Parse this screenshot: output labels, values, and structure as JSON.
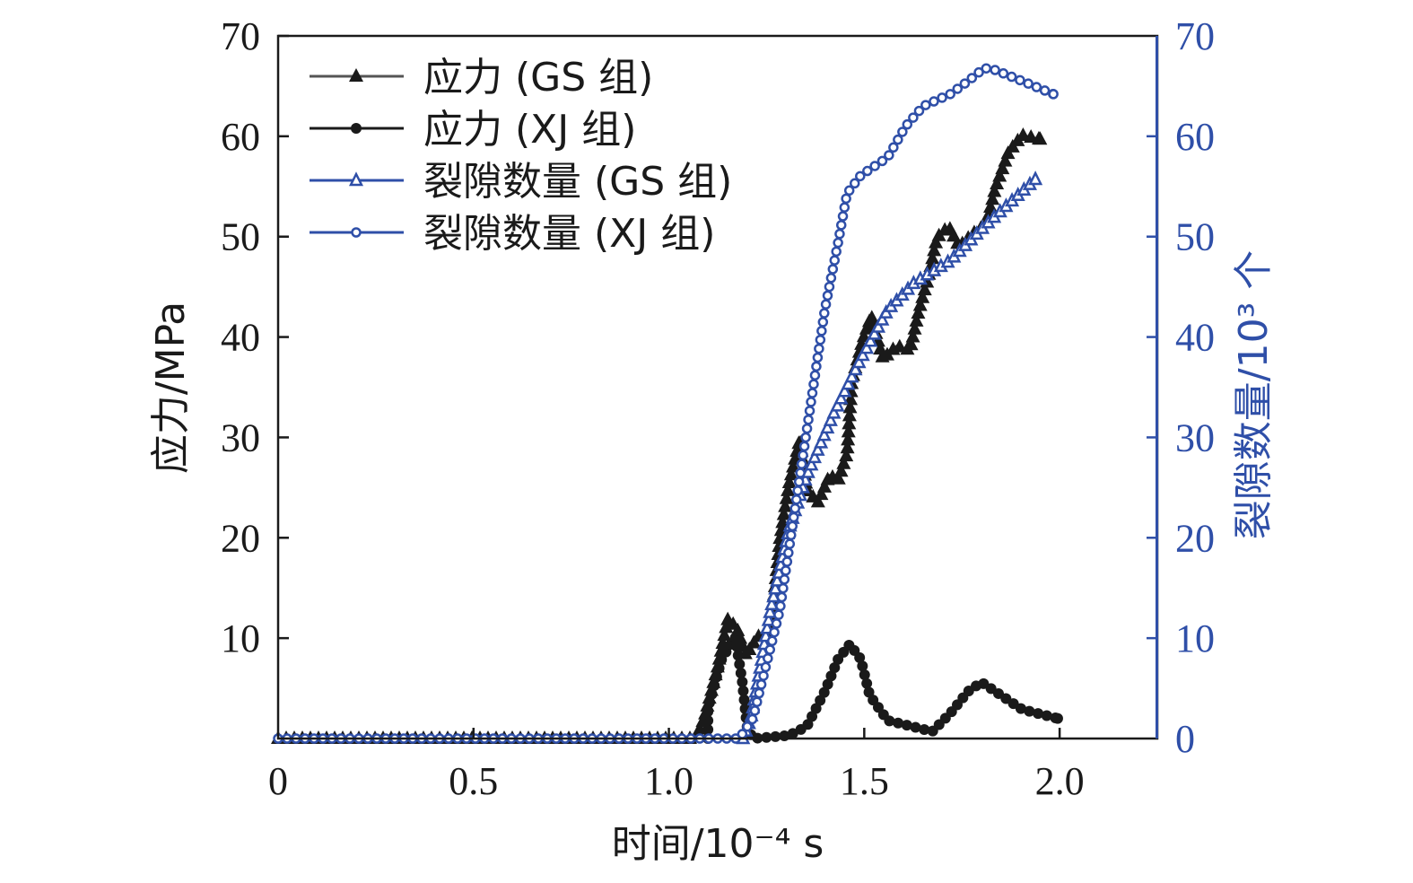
{
  "chart_data": {
    "type": "line",
    "xlabel": "时间/10⁻⁴ s",
    "ylabel": "应力/MPa",
    "y2label": "裂隙数量/10³ 个",
    "xlim": [
      0,
      2.25
    ],
    "ylim": [
      0,
      70
    ],
    "y2lim": [
      0,
      70
    ],
    "x_ticks": [
      "0",
      "0.5",
      "1.0",
      "1.5",
      "2.0"
    ],
    "x_tick_values": [
      0,
      0.5,
      1.0,
      1.5,
      2.0
    ],
    "y_ticks": [
      "10",
      "20",
      "30",
      "40",
      "50",
      "60",
      "70"
    ],
    "y_tick_values": [
      10,
      20,
      30,
      40,
      50,
      60,
      70
    ],
    "y2_ticks": [
      "0",
      "10",
      "20",
      "30",
      "40",
      "50",
      "60",
      "70"
    ],
    "y2_tick_values": [
      0,
      10,
      20,
      30,
      40,
      50,
      60,
      70
    ],
    "legend_position": "top-left",
    "grid": false,
    "colors": {
      "black": "#1a1a1a",
      "gs_line": "#555555",
      "blue": "#2f4fa8"
    },
    "series": [
      {
        "name": "应力 (GS 组)",
        "axis": "left",
        "marker": "triangle-filled",
        "color": "#1a1a1a",
        "line": "#555555",
        "points": [
          [
            0,
            0
          ],
          [
            1.069,
            0
          ],
          [
            1.09,
            2
          ],
          [
            1.124,
            7
          ],
          [
            1.151,
            11.9
          ],
          [
            1.174,
            11
          ],
          [
            1.197,
            8.3
          ],
          [
            1.227,
            10.1
          ],
          [
            1.261,
            11
          ],
          [
            1.284,
            19.9
          ],
          [
            1.307,
            25.3
          ],
          [
            1.335,
            29.8
          ],
          [
            1.353,
            24.8
          ],
          [
            1.381,
            23.5
          ],
          [
            1.411,
            26.2
          ],
          [
            1.433,
            25.7
          ],
          [
            1.456,
            28.4
          ],
          [
            1.468,
            35.6
          ],
          [
            1.495,
            39.6
          ],
          [
            1.518,
            42.1
          ],
          [
            1.548,
            37.8
          ],
          [
            1.583,
            39.1
          ],
          [
            1.617,
            38.7
          ],
          [
            1.64,
            42.7
          ],
          [
            1.663,
            45.8
          ],
          [
            1.686,
            49.9
          ],
          [
            1.716,
            51
          ],
          [
            1.743,
            49
          ],
          [
            1.778,
            50.3
          ],
          [
            1.812,
            51.2
          ],
          [
            1.835,
            54.8
          ],
          [
            1.869,
            58.4
          ],
          [
            1.904,
            60.1
          ],
          [
            1.95,
            59.7
          ]
        ]
      },
      {
        "name": "应力 (XJ 组)",
        "axis": "left",
        "marker": "circle-filled",
        "color": "#1a1a1a",
        "line": "#1a1a1a",
        "points": [
          [
            1.1,
            0
          ],
          [
            1.1,
            3
          ],
          [
            1.135,
            7.9
          ],
          [
            1.17,
            10.1
          ],
          [
            1.188,
            5.6
          ],
          [
            1.2,
            1.2
          ],
          [
            1.215,
            0
          ],
          [
            1.307,
            0.3
          ],
          [
            1.353,
            1.2
          ],
          [
            1.399,
            4.7
          ],
          [
            1.433,
            7.9
          ],
          [
            1.463,
            9.4
          ],
          [
            1.491,
            7.9
          ],
          [
            1.514,
            4.3
          ],
          [
            1.56,
            1.8
          ],
          [
            1.674,
            0.7
          ],
          [
            1.72,
            2.5
          ],
          [
            1.766,
            4.7
          ],
          [
            1.8,
            5.6
          ],
          [
            1.835,
            4.7
          ],
          [
            1.904,
            2.9
          ],
          [
            1.995,
            2
          ]
        ]
      },
      {
        "name": "裂隙数量 (GS 组)",
        "axis": "right",
        "marker": "triangle-open",
        "color": "#2f4fa8",
        "line": "#2f4fa8",
        "points": [
          [
            1.19,
            0
          ],
          [
            1.21,
            2
          ],
          [
            1.26,
            12.8
          ],
          [
            1.307,
            20.8
          ],
          [
            1.353,
            26.2
          ],
          [
            1.422,
            32.4
          ],
          [
            1.491,
            37.8
          ],
          [
            1.56,
            42.7
          ],
          [
            1.628,
            45.4
          ],
          [
            1.72,
            47.6
          ],
          [
            1.812,
            51.2
          ],
          [
            1.938,
            55.7
          ]
        ]
      },
      {
        "name": "裂隙数量 (XJ 组)",
        "axis": "right",
        "marker": "circle-open",
        "color": "#2f4fa8",
        "line": "#2f4fa8",
        "points": [
          [
            0,
            0
          ],
          [
            1.18,
            0
          ],
          [
            1.215,
            2
          ],
          [
            1.284,
            12.8
          ],
          [
            1.346,
            28.9
          ],
          [
            1.399,
            42.7
          ],
          [
            1.433,
            49.4
          ],
          [
            1.456,
            54.3
          ],
          [
            1.491,
            56.1
          ],
          [
            1.56,
            57.9
          ],
          [
            1.606,
            61
          ],
          [
            1.651,
            63
          ],
          [
            1.72,
            64.2
          ],
          [
            1.766,
            65.5
          ],
          [
            1.807,
            66.8
          ],
          [
            1.835,
            66.6
          ],
          [
            1.904,
            65.5
          ],
          [
            1.984,
            64.2
          ]
        ]
      }
    ]
  }
}
